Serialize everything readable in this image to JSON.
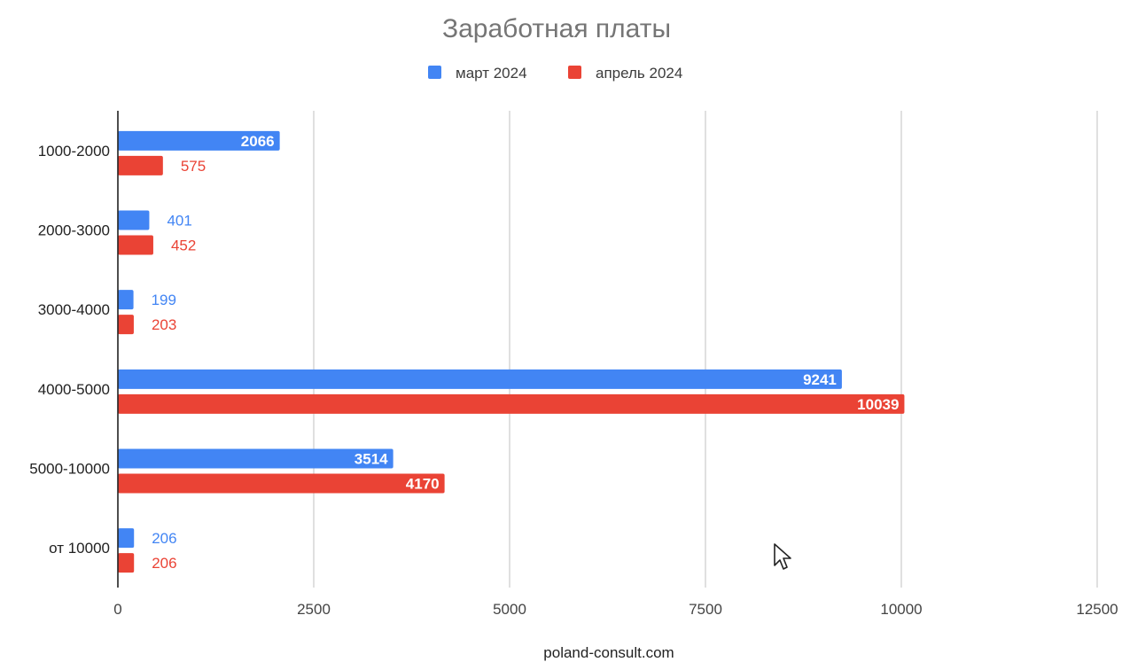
{
  "chart_data": {
    "type": "bar",
    "orientation": "horizontal",
    "title": "Заработная платы",
    "xlabel": "poland-consult.com",
    "ylabel": "",
    "categories": [
      "1000-2000",
      "2000-3000",
      "3000-4000",
      "4000-5000",
      "5000-10000",
      "от 10000"
    ],
    "series": [
      {
        "name": "март 2024",
        "color": "#4285f4",
        "values": [
          2066,
          401,
          199,
          9241,
          3514,
          206
        ]
      },
      {
        "name": "апрель 2024",
        "color": "#ea4335",
        "values": [
          575,
          452,
          203,
          10039,
          4170,
          206
        ]
      }
    ],
    "xlim": [
      0,
      12500
    ],
    "xticks": [
      0,
      2500,
      5000,
      7500,
      10000,
      12500
    ],
    "grid": true,
    "legend_position": "top"
  },
  "cursor": {
    "icon": "mouse-pointer-icon"
  }
}
